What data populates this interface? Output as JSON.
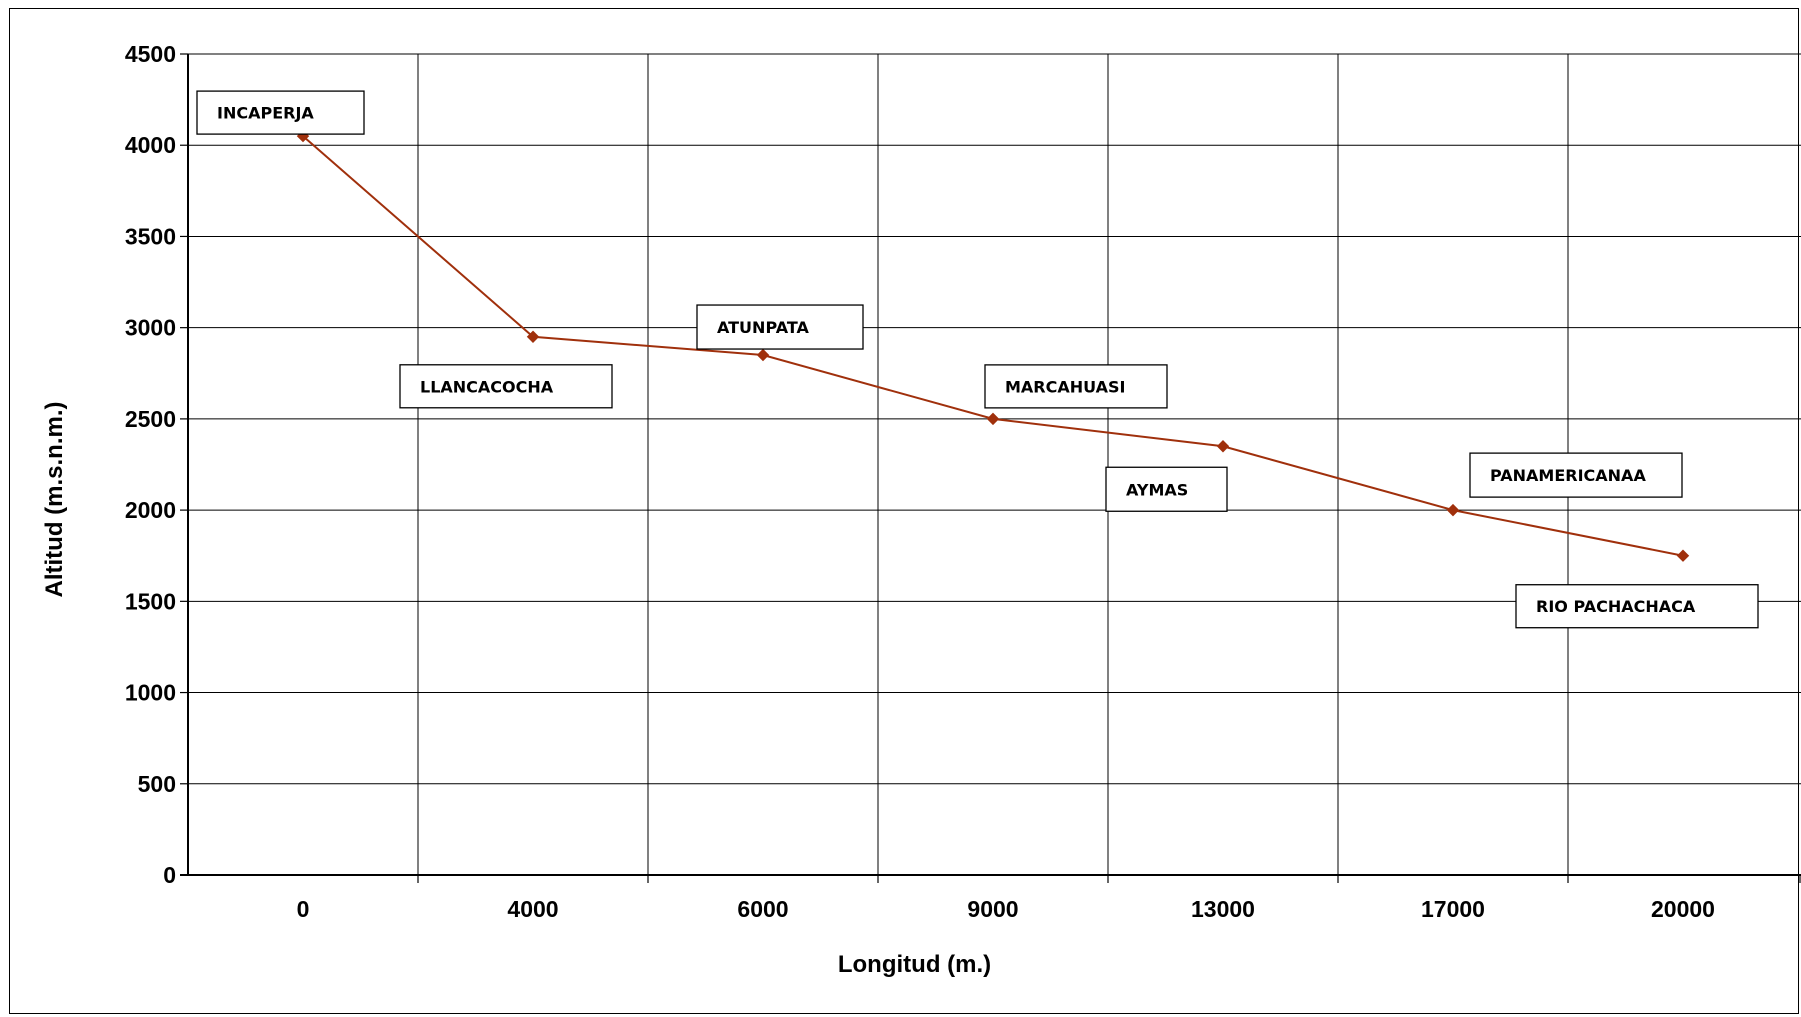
{
  "chart_data": {
    "type": "line",
    "title": "",
    "xlabel": "Longitud (m.)",
    "ylabel": "Altitud (m.s.n.m.)",
    "categories": [
      "0",
      "4000",
      "6000",
      "9000",
      "13000",
      "17000",
      "20000"
    ],
    "values": [
      4050,
      2950,
      2850,
      2500,
      2350,
      2000,
      1750
    ],
    "point_labels": [
      "INCAPERJA",
      "LLANCACOCHA",
      "ATUNPATA",
      "MARCAHUASI",
      "AYMAS",
      "PANAMERICANAA",
      "RIO PACHACHACA"
    ],
    "ylim": [
      0,
      4500
    ],
    "yticks": [
      "0",
      "500",
      "1000",
      "1500",
      "2000",
      "2500",
      "3000",
      "3500",
      "4000",
      "4500"
    ],
    "grid": true,
    "legend": "none",
    "line_color": "#a0300c"
  }
}
